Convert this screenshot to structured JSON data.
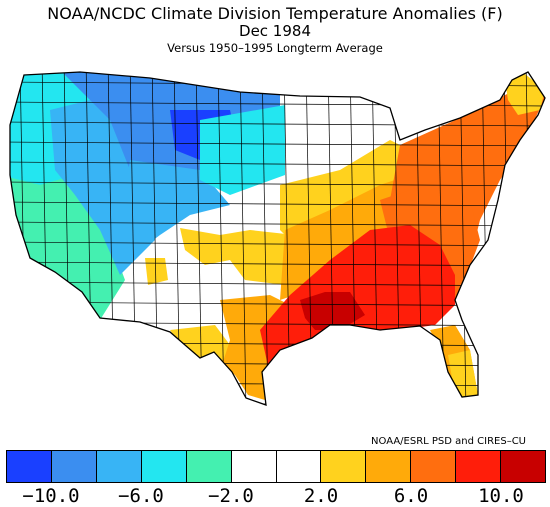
{
  "title": "NOAA/NCDC Climate Division Temperature Anomalies (F)",
  "period": "Dec 1984",
  "subtitle": "Versus 1950–1995 Longterm Average",
  "credit": "NOAA/ESRL PSD and CIRES–CU",
  "legend": {
    "colors": [
      "#1a40ff",
      "#3b8ef0",
      "#38b4f5",
      "#23e6f0",
      "#44f0b0",
      "#ffffff",
      "#ffffff",
      "#ffd21e",
      "#ffaa0a",
      "#ff6e0f",
      "#ff1e0a",
      "#c80000"
    ],
    "ticks": [
      "−10.0",
      "−6.0",
      "−2.0",
      "2.0",
      "6.0",
      "10.0"
    ]
  },
  "map_regions": {
    "pacific_northwest_coast": "#23e6f0",
    "california_nevada_west": "#44f0b0",
    "idaho_oregon_interior": "#38b4f5",
    "montana_north_dakota": "#3b8ef0",
    "montana_core": "#1a40ff",
    "wyoming_utah": "#38b4f5",
    "south_dakota": "#23e6f0",
    "central_plains_southwest": "#ffffff",
    "colorado_new_mexico_kansas": "#ffd21e",
    "midwest": "#ffd21e",
    "east_plains": "#ffaa0a",
    "northeast": "#ff6e0f",
    "mid_atlantic_southeast": "#ff6e0f",
    "deep_south": "#ff1e0a",
    "mississippi_core": "#c80000",
    "texas_core": "#ffaa0a",
    "florida": "#ffaa0a",
    "florida_south": "#ffd21e",
    "maine": "#ffd21e"
  }
}
